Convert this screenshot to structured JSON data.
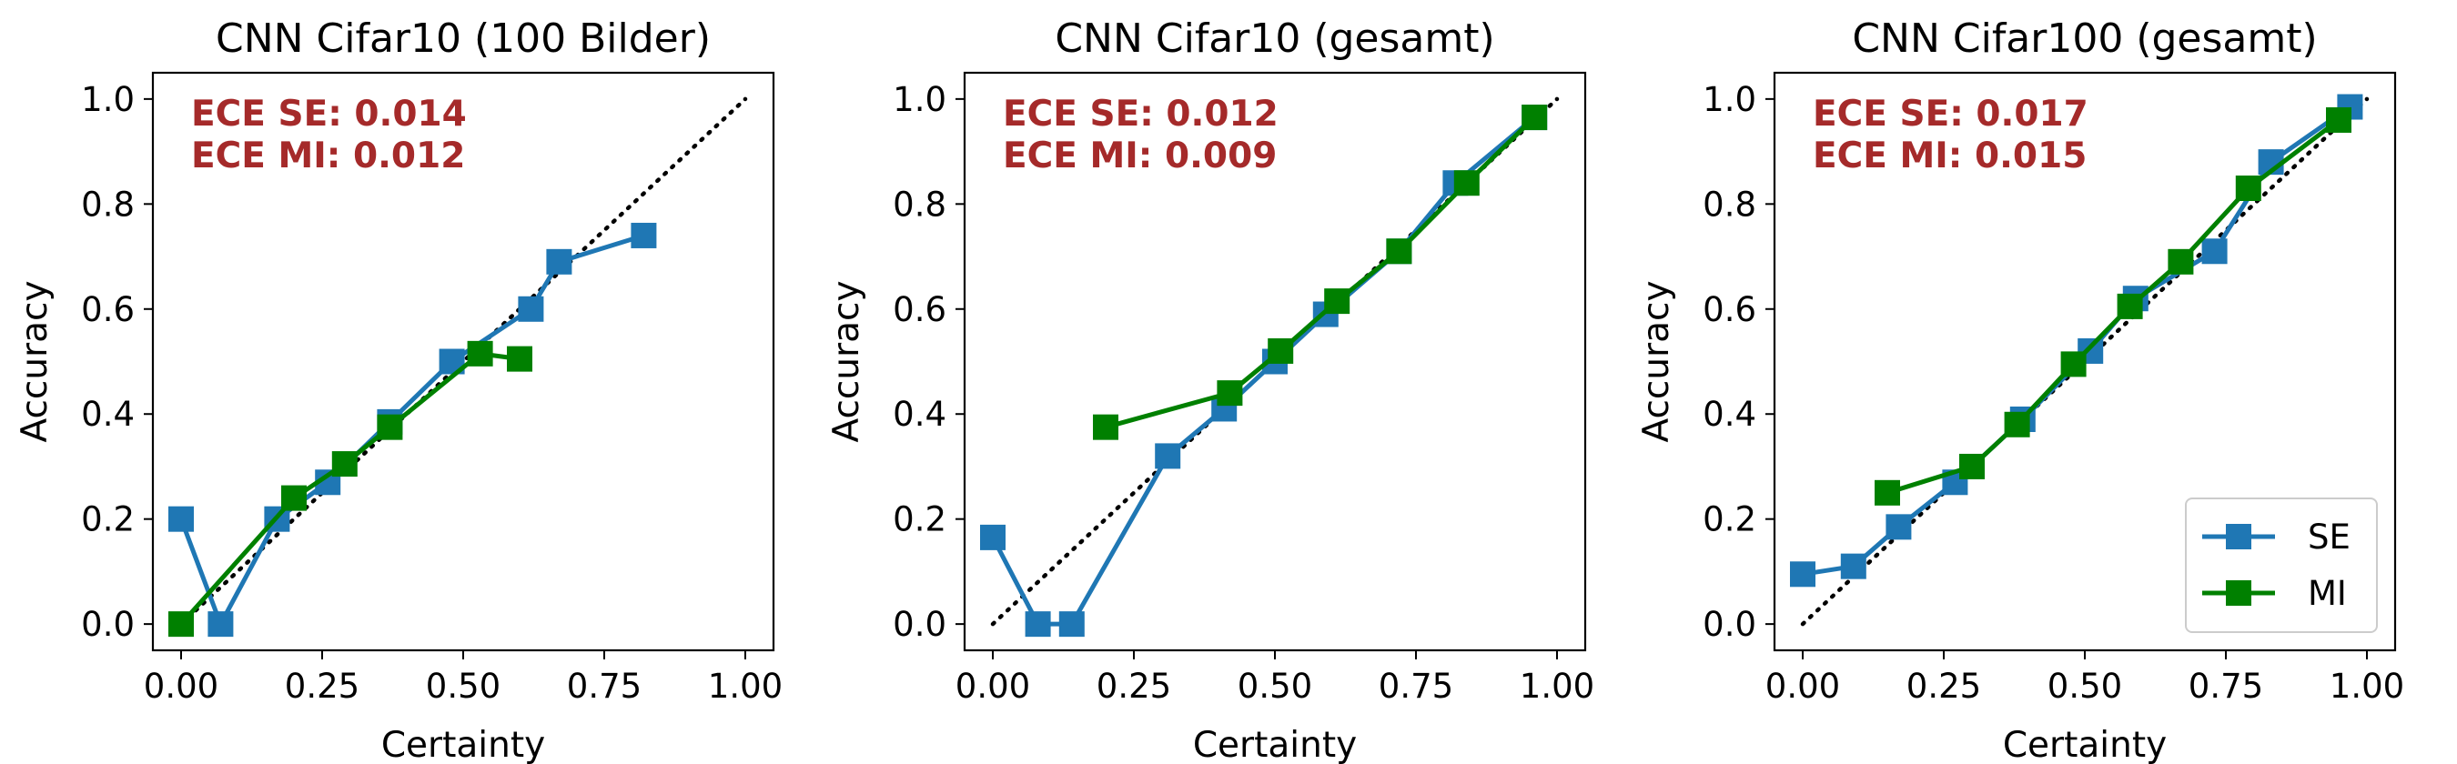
{
  "colors": {
    "se": "#1f77b4",
    "mi": "#008000",
    "ece_text": "#a52a2a",
    "diagonal": "#000000"
  },
  "legend": [
    {
      "label": "SE",
      "color": "#1f77b4"
    },
    {
      "label": "MI",
      "color": "#008000"
    }
  ],
  "chart_data": [
    {
      "type": "line",
      "title": "CNN Cifar10 (100 Bilder)",
      "xlabel": "Certainty",
      "ylabel": "Accuracy",
      "xlim": [
        -0.05,
        1.05
      ],
      "ylim": [
        -0.05,
        1.05
      ],
      "xticks": [
        "0.00",
        "0.25",
        "0.50",
        "0.75",
        "1.00"
      ],
      "yticks": [
        "0.0",
        "0.2",
        "0.4",
        "0.6",
        "0.8",
        "1.0"
      ],
      "annotations": [
        "ECE SE: 0.014",
        "ECE MI: 0.012"
      ],
      "legend_location": "none",
      "series": [
        {
          "name": "SE",
          "x": [
            0.0,
            0.07,
            0.17,
            0.26,
            0.37,
            0.48,
            0.62,
            0.67,
            0.82
          ],
          "y": [
            0.2,
            0.0,
            0.2,
            0.27,
            0.385,
            0.5,
            0.6,
            0.69,
            0.74
          ]
        },
        {
          "name": "MI",
          "x": [
            0.0,
            0.2,
            0.29,
            0.37,
            0.53,
            0.6
          ],
          "y": [
            0.0,
            0.24,
            0.305,
            0.375,
            0.515,
            0.505
          ]
        }
      ]
    },
    {
      "type": "line",
      "title": "CNN Cifar10 (gesamt)",
      "xlabel": "Certainty",
      "ylabel": "Accuracy",
      "xlim": [
        -0.05,
        1.05
      ],
      "ylim": [
        -0.05,
        1.05
      ],
      "xticks": [
        "0.00",
        "0.25",
        "0.50",
        "0.75",
        "1.00"
      ],
      "yticks": [
        "0.0",
        "0.2",
        "0.4",
        "0.6",
        "0.8",
        "1.0"
      ],
      "annotations": [
        "ECE SE: 0.012",
        "ECE MI: 0.009"
      ],
      "legend_location": "none",
      "series": [
        {
          "name": "SE",
          "x": [
            0.0,
            0.08,
            0.14,
            0.31,
            0.41,
            0.5,
            0.59,
            0.72,
            0.82,
            0.96
          ],
          "y": [
            0.165,
            0.0,
            0.0,
            0.32,
            0.41,
            0.5,
            0.59,
            0.71,
            0.84,
            0.965
          ]
        },
        {
          "name": "MI",
          "x": [
            0.2,
            0.42,
            0.51,
            0.61,
            0.72,
            0.84,
            0.96
          ],
          "y": [
            0.375,
            0.44,
            0.52,
            0.615,
            0.71,
            0.84,
            0.965
          ]
        }
      ]
    },
    {
      "type": "line",
      "title": "CNN Cifar100 (gesamt)",
      "xlabel": "Certainty",
      "ylabel": "Accuracy",
      "xlim": [
        -0.05,
        1.05
      ],
      "ylim": [
        -0.05,
        1.05
      ],
      "xticks": [
        "0.00",
        "0.25",
        "0.50",
        "0.75",
        "1.00"
      ],
      "yticks": [
        "0.0",
        "0.2",
        "0.4",
        "0.6",
        "0.8",
        "1.0"
      ],
      "annotations": [
        "ECE SE: 0.017",
        "ECE MI: 0.015"
      ],
      "legend_location": "lower right",
      "series": [
        {
          "name": "SE",
          "x": [
            0.0,
            0.09,
            0.17,
            0.27,
            0.39,
            0.51,
            0.59,
            0.73,
            0.83,
            0.97
          ],
          "y": [
            0.095,
            0.11,
            0.185,
            0.27,
            0.39,
            0.52,
            0.62,
            0.71,
            0.88,
            0.985
          ]
        },
        {
          "name": "MI",
          "x": [
            0.15,
            0.3,
            0.38,
            0.48,
            0.58,
            0.67,
            0.79,
            0.95
          ],
          "y": [
            0.25,
            0.3,
            0.38,
            0.495,
            0.605,
            0.69,
            0.83,
            0.96
          ]
        }
      ]
    }
  ]
}
